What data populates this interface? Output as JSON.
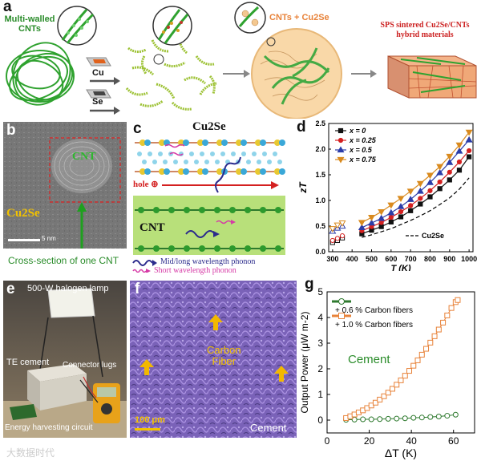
{
  "figure": {
    "panels": {
      "a": {
        "label": "a",
        "mwcnt_label_line1": "Multi-walled",
        "mwcnt_label_line2": "CNTs",
        "cu_label": "Cu",
        "se_label": "Se",
        "mix_label": "CNTs + Cu2Se",
        "sps_label_line1": "SPS sintered  Cu2Se/CNTs",
        "sps_label_line2": "hybrid materials"
      },
      "b": {
        "label": "b",
        "cnt_label": "CNT",
        "matrix_label": "Cu2Se",
        "scale_label": "5 nm",
        "caption": "Cross-section of one CNT"
      },
      "c": {
        "label": "c",
        "top_title": "Cu2Se",
        "hole_label": "hole ⊕",
        "cnt_title": "CNT",
        "legend_mid": "Mid/long wavelength phonon",
        "legend_short": "Short wavelength phonon"
      },
      "d": {
        "label": "d",
        "ylabel": "zT",
        "xlabel": "T (K)",
        "ref_label": "Cu2Se"
      },
      "e": {
        "label": "e",
        "lamp_label": "500-W halogen lamp",
        "cement_label": "TE cement",
        "lugs_label": "Connector lugs",
        "circuit_label": "Energy harvesting circuit"
      },
      "f": {
        "label": "f",
        "fiber_line1": "Carbon",
        "fiber_line2": "Fiber",
        "scale_label": "100 μm",
        "cement_label": "Cement"
      },
      "g": {
        "label": "g",
        "ylabel": "Output Power (μW m-2)",
        "xlabel": "ΔT (K)",
        "annotation": "Cement"
      }
    },
    "watermark": "大数据时代"
  },
  "colors": {
    "green_label": "#2a8c2a",
    "red_label": "#cc2222",
    "yellow_label": "#f2c200",
    "orange_series": "#e8833a",
    "green_series": "#2f7a2f",
    "cnt_green": "#33aa33",
    "cnt_band": "#b8e07a"
  },
  "chart_data": [
    {
      "panel": "d",
      "type": "line",
      "xlabel": "T (K)",
      "ylabel": "zT",
      "xlim": [
        280,
        1020
      ],
      "ylim": [
        0,
        2.5
      ],
      "xticks": [
        300,
        400,
        500,
        600,
        700,
        800,
        900,
        1000
      ],
      "yticks": [
        0.0,
        0.5,
        1.0,
        1.5,
        2.0,
        2.5
      ],
      "x_low": [
        300,
        325,
        350
      ],
      "x": [
        450,
        500,
        550,
        600,
        650,
        700,
        750,
        800,
        850,
        900,
        950,
        1000
      ],
      "series": [
        {
          "name": "x = 0",
          "color": "#111111",
          "marker": "square",
          "low": [
            0.18,
            0.22,
            0.27
          ],
          "values": [
            0.35,
            0.42,
            0.49,
            0.58,
            0.68,
            0.8,
            0.93,
            1.07,
            1.23,
            1.4,
            1.59,
            1.85
          ]
        },
        {
          "name": "x = 0.25",
          "color": "#d42020",
          "marker": "circle",
          "low": [
            0.22,
            0.26,
            0.31
          ],
          "values": [
            0.41,
            0.49,
            0.57,
            0.67,
            0.78,
            0.9,
            1.04,
            1.19,
            1.36,
            1.55,
            1.75,
            1.97
          ]
        },
        {
          "name": "x = 0.5",
          "color": "#2b3ca8",
          "marker": "triangle-up",
          "low": [
            0.4,
            0.46,
            0.5
          ],
          "values": [
            0.47,
            0.56,
            0.65,
            0.76,
            0.88,
            1.02,
            1.18,
            1.35,
            1.54,
            1.74,
            1.96,
            2.18
          ]
        },
        {
          "name": "x = 0.75",
          "color": "#d98a1e",
          "marker": "triangle-down",
          "low": [
            0.45,
            0.52,
            0.56
          ],
          "values": [
            0.57,
            0.67,
            0.78,
            0.91,
            1.04,
            1.18,
            1.33,
            1.49,
            1.66,
            1.86,
            2.08,
            2.33
          ]
        }
      ],
      "reference": {
        "name": "Cu2Se",
        "style": "dashed",
        "x": [
          450,
          500,
          550,
          600,
          650,
          700,
          750,
          800,
          850,
          900,
          950,
          1000
        ],
        "values": [
          0.28,
          0.33,
          0.39,
          0.45,
          0.53,
          0.61,
          0.7,
          0.8,
          0.92,
          1.05,
          1.22,
          1.44
        ]
      },
      "legend_placement": "top-left"
    },
    {
      "panel": "g",
      "type": "scatter",
      "xlabel": "ΔT (K)",
      "ylabel": "Output Power (μW m-2)",
      "xlim": [
        0,
        70
      ],
      "ylim": [
        -0.5,
        5
      ],
      "xticks": [
        0,
        20,
        40,
        60
      ],
      "yticks": [
        0,
        1,
        2,
        3,
        4,
        5
      ],
      "series": [
        {
          "name": "+ 0.6 % Carbon fibers",
          "color": "#2f7a2f",
          "marker": "circle",
          "x": [
            9,
            13,
            17,
            21,
            25,
            29,
            33,
            37,
            41,
            45,
            49,
            53,
            57,
            61
          ],
          "values": [
            0.01,
            0.02,
            0.03,
            0.03,
            0.04,
            0.05,
            0.06,
            0.07,
            0.09,
            0.1,
            0.12,
            0.14,
            0.17,
            0.21
          ]
        },
        {
          "name": "+ 1.0 % Carbon fibers",
          "color": "#e8833a",
          "marker": "square",
          "x": [
            9,
            11,
            13,
            15,
            17,
            19,
            21,
            23,
            25,
            27,
            29,
            31,
            33,
            35,
            37,
            39,
            41,
            43,
            45,
            47,
            49,
            51,
            53,
            55,
            57,
            59,
            61,
            62
          ],
          "values": [
            0.08,
            0.15,
            0.22,
            0.3,
            0.38,
            0.47,
            0.57,
            0.68,
            0.8,
            0.93,
            1.07,
            1.22,
            1.38,
            1.55,
            1.73,
            1.92,
            2.12,
            2.33,
            2.55,
            2.78,
            3.02,
            3.27,
            3.53,
            3.8,
            4.08,
            4.37,
            4.6,
            4.68
          ]
        }
      ],
      "legend_placement": "top-left"
    }
  ]
}
